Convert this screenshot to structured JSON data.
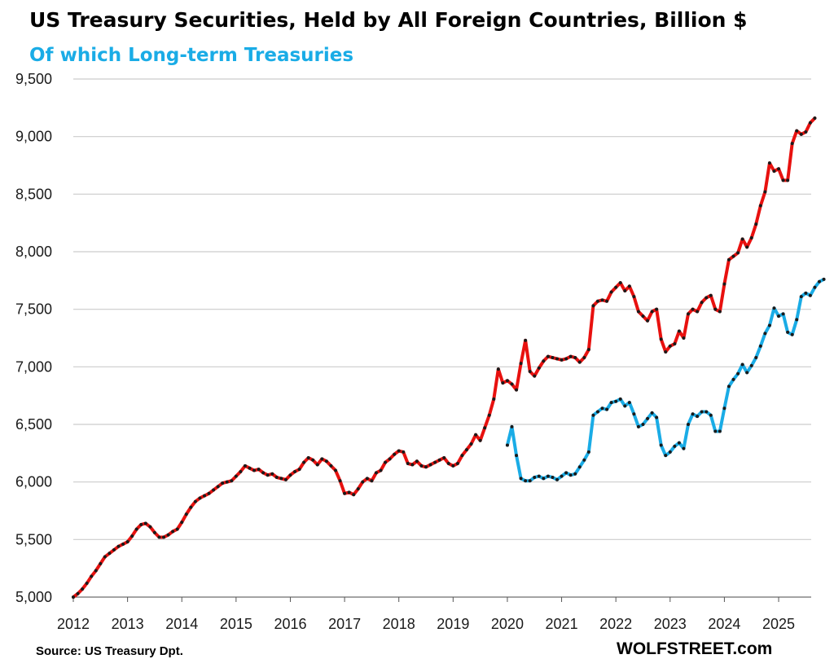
{
  "chart_data": {
    "type": "line",
    "title": "US Treasury Securities, Held by All Foreign Countries, Billion $",
    "subtitle": "Of which Long-term Treasuries",
    "xlabel": "",
    "ylabel": "",
    "ylim": [
      5000,
      9500
    ],
    "xlim": [
      2012,
      2025.6
    ],
    "y_ticks": [
      5000,
      5500,
      6000,
      6500,
      7000,
      7500,
      8000,
      8500,
      9000,
      9500
    ],
    "y_tick_labels": [
      "5,000",
      "5,500",
      "6,000",
      "6,500",
      "7,000",
      "7,500",
      "8,000",
      "8,500",
      "9,000",
      "9,500"
    ],
    "x_ticks": [
      2012,
      2013,
      2014,
      2015,
      2016,
      2017,
      2018,
      2019,
      2020,
      2021,
      2022,
      2023,
      2024,
      2025
    ],
    "x_tick_labels": [
      "2012",
      "2013",
      "2014",
      "2015",
      "2016",
      "2017",
      "2018",
      "2019",
      "2020",
      "2021",
      "2022",
      "2023",
      "2024",
      "2025"
    ],
    "grid": "horizontal",
    "legend": "none",
    "series": [
      {
        "color": "#E8110F",
        "start": "2012-01",
        "values": [
          5000,
          5030,
          5070,
          5120,
          5180,
          5230,
          5290,
          5350,
          5380,
          5410,
          5440,
          5460,
          5480,
          5530,
          5590,
          5630,
          5640,
          5610,
          5560,
          5520,
          5520,
          5540,
          5570,
          5590,
          5650,
          5720,
          5780,
          5830,
          5860,
          5880,
          5900,
          5930,
          5960,
          5990,
          6000,
          6010,
          6050,
          6090,
          6140,
          6120,
          6100,
          6110,
          6080,
          6060,
          6070,
          6040,
          6030,
          6020,
          6060,
          6090,
          6110,
          6170,
          6210,
          6190,
          6150,
          6200,
          6180,
          6140,
          6100,
          6010,
          5900,
          5910,
          5890,
          5940,
          6000,
          6030,
          6010,
          6080,
          6100,
          6170,
          6200,
          6240,
          6270,
          6260,
          6160,
          6150,
          6180,
          6140,
          6130,
          6150,
          6170,
          6190,
          6210,
          6160,
          6140,
          6160,
          6230,
          6280,
          6330,
          6410,
          6360,
          6470,
          6580,
          6720,
          6980,
          6860,
          6880,
          6850,
          6800,
          7030,
          7230,
          6960,
          6920,
          6990,
          7050,
          7090,
          7080,
          7070,
          7060,
          7070,
          7090,
          7080,
          7040,
          7080,
          7150,
          7530,
          7570,
          7580,
          7570,
          7650,
          7690,
          7730,
          7660,
          7700,
          7610,
          7480,
          7440,
          7400,
          7480,
          7500,
          7240,
          7130,
          7180,
          7200,
          7310,
          7250,
          7460,
          7500,
          7480,
          7560,
          7600,
          7620,
          7500,
          7480,
          7720,
          7930,
          7960,
          7990,
          8110,
          8040,
          8120,
          8240,
          8400,
          8520,
          8770,
          8700,
          8720,
          8620,
          8620,
          8940,
          9050,
          9020,
          9040,
          9120,
          9160
        ]
      },
      {
        "color": "#1AACE6",
        "start": "2020-01",
        "values": [
          6320,
          6480,
          6230,
          6030,
          6010,
          6010,
          6040,
          6050,
          6030,
          6050,
          6040,
          6020,
          6050,
          6080,
          6060,
          6070,
          6130,
          6190,
          6260,
          6580,
          6610,
          6640,
          6630,
          6690,
          6700,
          6720,
          6660,
          6690,
          6590,
          6480,
          6500,
          6550,
          6600,
          6560,
          6320,
          6230,
          6260,
          6310,
          6340,
          6290,
          6500,
          6590,
          6570,
          6610,
          6610,
          6580,
          6440,
          6440,
          6640,
          6830,
          6890,
          6940,
          7020,
          6950,
          7010,
          7080,
          7180,
          7290,
          7360,
          7510,
          7440,
          7460,
          7300,
          7280,
          7410,
          7610,
          7640,
          7620,
          7690,
          7740,
          7760
        ]
      }
    ]
  },
  "footer": {
    "source": "Source: US Treasury  Dpt.",
    "brand": "WOLFSTREET.com"
  },
  "colors": {
    "gridline": "#cccccc",
    "marker": "#1a1a1a"
  }
}
